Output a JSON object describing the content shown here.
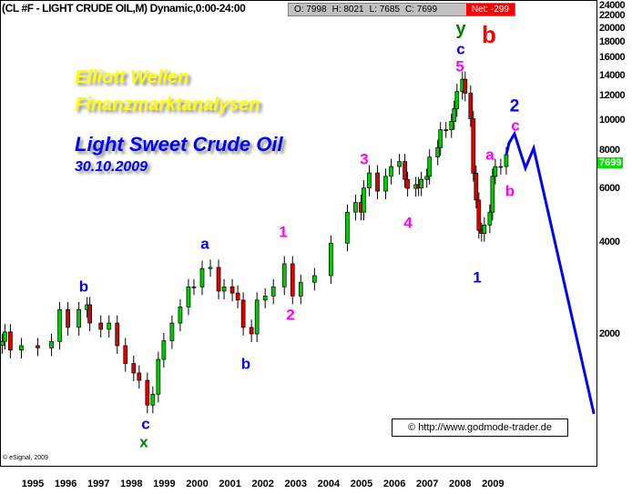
{
  "header": {
    "title": "(CL #F - LIGHT CRUDE OIL,M) Dynamic,0:00-24:00",
    "open": "O: 7998",
    "high": "H: 8021",
    "low": "L: 7685",
    "close": "C: 7699",
    "net": "Net: -299"
  },
  "annotations": {
    "line1": "Elliott Wellen",
    "line2": "Finanzmarktanalysen",
    "line3": "Light Sweet Crude Oil",
    "line4": "30.10.2009"
  },
  "credit": "© http://www.godmode-trader.de",
  "copyright": "© eSignal, 2009",
  "last_price_label": "7699",
  "colors": {
    "up": "#00cc00",
    "down": "#dd0000",
    "projection": "#0000ff",
    "last_price_bg": "#00e000"
  },
  "wave_labels": [
    "b",
    "c",
    "x",
    "a",
    "b",
    "1",
    "2",
    "3",
    "4",
    "5",
    "c",
    "y",
    "b",
    "1",
    "a",
    "b",
    "c",
    "2"
  ],
  "chart_data": {
    "type": "candlestick",
    "scale": "log",
    "ylim": [
      1000,
      24000
    ],
    "yticks": [
      24000,
      22000,
      20000,
      18000,
      16000,
      14000,
      12000,
      10000,
      8000,
      6000,
      4000,
      2000
    ],
    "xticks": [
      "1995",
      "1996",
      "1997",
      "1998",
      "1999",
      "2000",
      "2001",
      "2002",
      "2003",
      "2004",
      "2005",
      "2006",
      "2007",
      "2008",
      "2009"
    ],
    "grid": false,
    "closes": [
      [
        "1994-06",
        1890
      ],
      [
        "1994-07",
        2030
      ],
      [
        "1994-09",
        1770
      ],
      [
        "1995-01",
        1830
      ],
      [
        "1995-07",
        1800
      ],
      [
        "1995-12",
        1890
      ],
      [
        "1996-03",
        2400
      ],
      [
        "1996-06",
        2100
      ],
      [
        "1996-10",
        2400
      ],
      [
        "1997-01",
        2490
      ],
      [
        "1997-02",
        2170
      ],
      [
        "1997-06",
        2070
      ],
      [
        "1997-09",
        2170
      ],
      [
        "1997-12",
        1830
      ],
      [
        "1998-03",
        1600
      ],
      [
        "1998-06",
        1490
      ],
      [
        "1998-08",
        1410
      ],
      [
        "1998-11",
        1170
      ],
      [
        "1999-01",
        1270
      ],
      [
        "1999-03",
        1650
      ],
      [
        "1999-05",
        1900
      ],
      [
        "1999-08",
        2170
      ],
      [
        "1999-11",
        2450
      ],
      [
        "2000-02",
        2850
      ],
      [
        "2000-04",
        2850
      ],
      [
        "2000-07",
        3270
      ],
      [
        "2000-10",
        3300
      ],
      [
        "2001-01",
        2760
      ],
      [
        "2001-03",
        2850
      ],
      [
        "2001-06",
        2720
      ],
      [
        "2001-08",
        2580
      ],
      [
        "2001-10",
        2100
      ],
      [
        "2002-01",
        2000
      ],
      [
        "2002-03",
        2580
      ],
      [
        "2002-06",
        2660
      ],
      [
        "2002-09",
        2850
      ],
      [
        "2003-01",
        3390
      ],
      [
        "2003-04",
        2660
      ],
      [
        "2003-07",
        2950
      ],
      [
        "2003-12",
        3100
      ],
      [
        "2004-06",
        3960
      ],
      [
        "2004-12",
        5000
      ],
      [
        "2005-03",
        5380
      ],
      [
        "2005-05",
        5000
      ],
      [
        "2005-06",
        6000
      ],
      [
        "2005-08",
        6720
      ],
      [
        "2005-11",
        5860
      ],
      [
        "2006-02",
        6550
      ],
      [
        "2006-04",
        7050
      ],
      [
        "2006-07",
        7320
      ],
      [
        "2006-09",
        6400
      ],
      [
        "2006-10",
        5980
      ],
      [
        "2007-01",
        6150
      ],
      [
        "2007-02",
        6000
      ],
      [
        "2007-03",
        6400
      ],
      [
        "2007-05",
        6550
      ],
      [
        "2007-06",
        7570
      ],
      [
        "2007-09",
        8130
      ],
      [
        "2007-10",
        9300
      ],
      [
        "2007-12",
        9300
      ],
      [
        "2008-02",
        9900
      ],
      [
        "2008-03",
        10900
      ],
      [
        "2008-04",
        12400
      ],
      [
        "2008-06",
        13600
      ],
      [
        "2008-07",
        12250
      ],
      [
        "2008-09",
        10100
      ],
      [
        "2008-10",
        6700
      ],
      [
        "2008-11",
        5480
      ],
      [
        "2008-12",
        4360
      ],
      [
        "2009-01",
        4260
      ],
      [
        "2009-02",
        4540
      ],
      [
        "2009-04",
        5000
      ],
      [
        "2009-05",
        6550
      ],
      [
        "2009-06",
        7050
      ],
      [
        "2009-08",
        7050
      ],
      [
        "2009-10",
        7699
      ]
    ],
    "projection": [
      [
        "2009-10",
        7699
      ],
      [
        "2009-11",
        8410
      ],
      [
        "2010-01",
        9020
      ],
      [
        "2010-05",
        6970
      ],
      [
        "2010-08",
        8090
      ],
      [
        "2012-06",
        1095
      ]
    ]
  }
}
